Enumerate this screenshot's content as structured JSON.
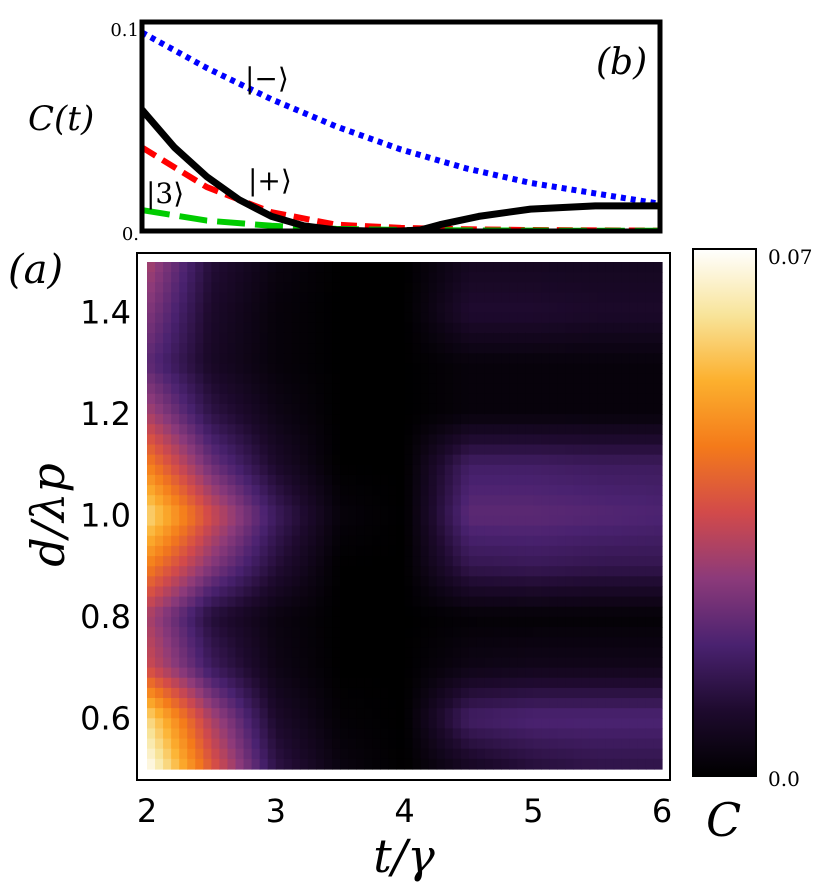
{
  "chart_data": [
    {
      "type": "line",
      "panel_label": "(b)",
      "ylabel": "C(t)",
      "xlim": [
        2,
        6
      ],
      "ylim": [
        0,
        0.1
      ],
      "ytick_labels": [
        "0.1",
        "0."
      ],
      "grid": false,
      "series": [
        {
          "name": "|−⟩",
          "color": "#0000ff",
          "style": "dotted",
          "x": [
            2,
            2.5,
            3,
            3.5,
            4,
            4.5,
            5,
            5.5,
            6
          ],
          "y": [
            0.095,
            0.078,
            0.063,
            0.05,
            0.039,
            0.03,
            0.023,
            0.018,
            0.013
          ]
        },
        {
          "name": "|+⟩",
          "color": "#ff0000",
          "style": "dashed",
          "x": [
            2,
            2.5,
            3,
            3.5,
            4,
            4.5,
            5,
            5.5,
            6
          ],
          "y": [
            0.04,
            0.021,
            0.009,
            0.003,
            0.0015,
            0.0008,
            0.0005,
            0.0003,
            0.0002
          ]
        },
        {
          "name": "|3⟩",
          "color": "#00cc00",
          "style": "longdash",
          "x": [
            2,
            2.5,
            3,
            3.5,
            4,
            4.5,
            5,
            5.5,
            6
          ],
          "y": [
            0.01,
            0.005,
            0.0025,
            0.001,
            0.0005,
            0.0003,
            0.0002,
            0.0001,
            0.0001
          ]
        },
        {
          "name": "",
          "color": "#000000",
          "style": "solid",
          "x": [
            2,
            2.25,
            2.5,
            2.75,
            3,
            3.25,
            3.5,
            3.75,
            4,
            4.15,
            4.3,
            4.6,
            5,
            5.5,
            6
          ],
          "y": [
            0.058,
            0.04,
            0.026,
            0.015,
            0.007,
            0.0025,
            0.0005,
            0.0,
            0.0,
            0.0005,
            0.003,
            0.007,
            0.0105,
            0.012,
            0.012
          ]
        }
      ]
    },
    {
      "type": "heatmap",
      "panel_label": "(a)",
      "xlabel": "t/γ",
      "ylabel": "d/λp",
      "xlim": [
        2,
        6
      ],
      "ylim": [
        0.5,
        1.5
      ],
      "x_ticks": [
        2,
        3,
        4,
        5,
        6
      ],
      "y_ticks": [
        0.6,
        0.8,
        1.0,
        1.2,
        1.4
      ],
      "x_tick_labels": [
        "2",
        "3",
        "4",
        "5",
        "6"
      ],
      "y_tick_labels": [
        "0.6",
        "0.8",
        "1.0",
        "1.2",
        "1.4"
      ],
      "colorbar": {
        "label": "C",
        "min": 0.0,
        "max": 0.07,
        "tick_labels": [
          "0.07",
          "0.0"
        ]
      },
      "colormap": [
        "#000000",
        "#1e0a2e",
        "#4a2270",
        "#8c3a7a",
        "#d24a4a",
        "#f47a1a",
        "#fcb02e",
        "#f8e49a",
        "#ffffff"
      ],
      "grid_x": [
        2,
        2.5,
        3,
        3.5,
        4,
        4.5,
        5,
        5.5,
        6
      ],
      "grid_y": [
        0.5,
        0.6,
        0.7,
        0.8,
        0.9,
        1.0,
        1.1,
        1.2,
        1.3,
        1.4,
        1.5
      ],
      "values": [
        [
          0.07,
          0.038,
          0.012,
          0.003,
          0.0,
          0.006,
          0.01,
          0.012,
          0.012
        ],
        [
          0.06,
          0.03,
          0.008,
          0.001,
          0.0,
          0.016,
          0.018,
          0.018,
          0.018
        ],
        [
          0.035,
          0.015,
          0.004,
          0.0,
          0.0,
          0.004,
          0.005,
          0.005,
          0.005
        ],
        [
          0.03,
          0.01,
          0.003,
          0.0,
          0.0,
          0.001,
          0.001,
          0.001,
          0.001
        ],
        [
          0.045,
          0.025,
          0.01,
          0.0,
          0.0,
          0.013,
          0.014,
          0.013,
          0.013
        ],
        [
          0.06,
          0.035,
          0.015,
          0.002,
          0.0,
          0.02,
          0.02,
          0.019,
          0.018
        ],
        [
          0.045,
          0.022,
          0.008,
          0.0,
          0.0,
          0.016,
          0.016,
          0.015,
          0.015
        ],
        [
          0.03,
          0.012,
          0.004,
          0.0,
          0.0,
          0.002,
          0.002,
          0.002,
          0.002
        ],
        [
          0.02,
          0.007,
          0.002,
          0.0,
          0.0,
          0.002,
          0.002,
          0.002,
          0.002
        ],
        [
          0.025,
          0.008,
          0.002,
          0.0,
          0.0,
          0.009,
          0.009,
          0.008,
          0.008
        ],
        [
          0.03,
          0.01,
          0.003,
          0.0,
          0.0,
          0.006,
          0.006,
          0.006,
          0.006
        ]
      ]
    }
  ]
}
